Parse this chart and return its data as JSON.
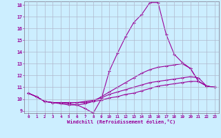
{
  "xlabel": "Windchill (Refroidissement éolien,°C)",
  "bg_color": "#cceeff",
  "line_color": "#990099",
  "grid_color": "#b0b8cc",
  "x_values": [
    0,
    1,
    2,
    3,
    4,
    5,
    6,
    7,
    8,
    9,
    10,
    11,
    12,
    13,
    14,
    15,
    16,
    17,
    18,
    19,
    20,
    21,
    22,
    23
  ],
  "line1": [
    10.5,
    10.2,
    9.8,
    9.7,
    9.7,
    9.6,
    9.5,
    9.2,
    8.8,
    10.0,
    12.4,
    13.9,
    15.3,
    16.5,
    17.2,
    18.2,
    18.2,
    15.5,
    13.8,
    13.1,
    12.6,
    11.5,
    11.1,
    11.0
  ],
  "line2": [
    10.5,
    10.2,
    9.8,
    9.7,
    9.6,
    9.5,
    9.5,
    9.6,
    9.8,
    10.2,
    10.6,
    11.0,
    11.4,
    11.8,
    12.2,
    12.5,
    12.7,
    12.8,
    12.9,
    13.0,
    12.6,
    11.5,
    11.1,
    11.0
  ],
  "line3": [
    10.5,
    10.2,
    9.8,
    9.7,
    9.7,
    9.7,
    9.7,
    9.8,
    9.9,
    10.1,
    10.4,
    10.6,
    10.8,
    11.0,
    11.2,
    11.4,
    11.5,
    11.6,
    11.7,
    11.8,
    11.9,
    11.8,
    11.1,
    11.0
  ],
  "line4": [
    10.5,
    10.2,
    9.8,
    9.7,
    9.7,
    9.7,
    9.7,
    9.7,
    9.8,
    9.9,
    10.1,
    10.2,
    10.4,
    10.5,
    10.7,
    10.9,
    11.1,
    11.2,
    11.3,
    11.4,
    11.5,
    11.5,
    11.1,
    11.0
  ],
  "ylim_min": 9,
  "ylim_max": 18,
  "yticks": [
    9,
    10,
    11,
    12,
    13,
    14,
    15,
    16,
    17,
    18
  ],
  "xticks": [
    0,
    1,
    2,
    3,
    4,
    5,
    6,
    7,
    8,
    9,
    10,
    11,
    12,
    13,
    14,
    15,
    16,
    17,
    18,
    19,
    20,
    21,
    22,
    23
  ]
}
